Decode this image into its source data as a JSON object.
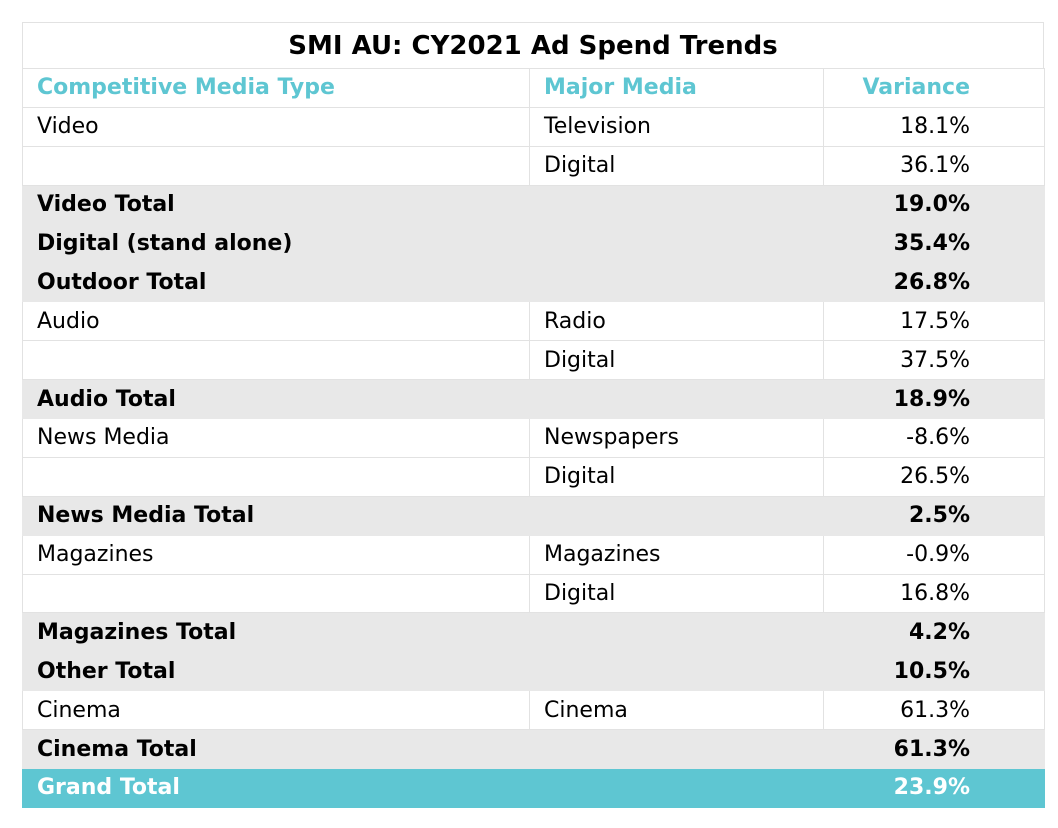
{
  "chart_data": {
    "type": "table",
    "title": "SMI AU: CY2021 Ad Spend Trends",
    "columns": [
      "Competitive Media Type",
      "Major Media",
      "Variance"
    ],
    "rows": [
      {
        "type": "Video",
        "media": "Television",
        "variance": "18.1%",
        "total": false
      },
      {
        "type": "",
        "media": "Digital",
        "variance": "36.1%",
        "total": false
      },
      {
        "type": "Video Total",
        "media": "",
        "variance": "19.0%",
        "total": true
      },
      {
        "type": "Digital (stand alone)",
        "media": "",
        "variance": "35.4%",
        "total": true
      },
      {
        "type": "Outdoor Total",
        "media": "",
        "variance": "26.8%",
        "total": true
      },
      {
        "type": "Audio",
        "media": "Radio",
        "variance": "17.5%",
        "total": false
      },
      {
        "type": "",
        "media": "Digital",
        "variance": "37.5%",
        "total": false
      },
      {
        "type": "Audio Total",
        "media": "",
        "variance": "18.9%",
        "total": true
      },
      {
        "type": "News Media",
        "media": "Newspapers",
        "variance": "-8.6%",
        "total": false
      },
      {
        "type": "",
        "media": "Digital",
        "variance": "26.5%",
        "total": false
      },
      {
        "type": "News Media Total",
        "media": "",
        "variance": "2.5%",
        "total": true
      },
      {
        "type": "Magazines",
        "media": "Magazines",
        "variance": "-0.9%",
        "total": false
      },
      {
        "type": "",
        "media": "Digital",
        "variance": "16.8%",
        "total": false
      },
      {
        "type": "Magazines Total",
        "media": "",
        "variance": "4.2%",
        "total": true
      },
      {
        "type": "Other Total",
        "media": "",
        "variance": "10.5%",
        "total": true
      },
      {
        "type": "Cinema",
        "media": "Cinema",
        "variance": "61.3%",
        "total": false
      },
      {
        "type": "Cinema Total",
        "media": "",
        "variance": "61.3%",
        "total": true
      }
    ],
    "grand_total": {
      "label": "Grand Total",
      "variance": "23.9%"
    },
    "colors": {
      "accent": "#5ec6d2",
      "total_fill": "#e8e8e8",
      "grid": "#e2e2e2"
    }
  }
}
